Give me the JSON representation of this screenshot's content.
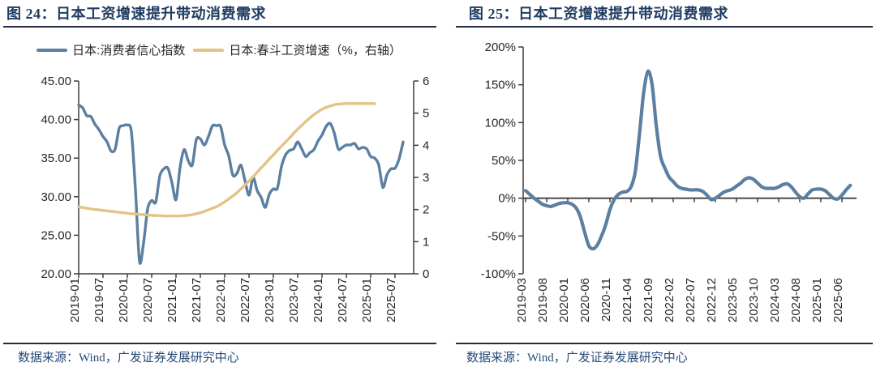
{
  "theme": {
    "title_color": "#1e3c61",
    "rule_color": "#222d42",
    "source_color": "#274b7a",
    "axis_color": "#3f3f3f",
    "tick_label_color": "#262626",
    "blue_line": "#5b7fa1",
    "tan_line": "#e3c386"
  },
  "panels": [
    {
      "title": "图 24：日本工资增速提升带动消费需求",
      "source": "数据来源：Wind，广发证券发展研究中心"
    },
    {
      "title": "图 25：日本工资增速提升带动消费需求",
      "source": "数据来源：Wind，广发证券发展研究中心"
    }
  ],
  "chart_data": [
    {
      "type": "line",
      "title": "图 24：日本工资增速提升带动消费需求",
      "x_start": "2019-01",
      "x_step_months": 1,
      "x_tick_interval_months": 6,
      "x_tick_labels": [
        "2019-01",
        "2019-07",
        "2020-01",
        "2020-07",
        "2021-01",
        "2021-07",
        "2022-01",
        "2022-07",
        "2023-01",
        "2023-07",
        "2024-01",
        "2024-07",
        "2025-01",
        "2025-07"
      ],
      "left_axis": {
        "ticks": [
          "45.00",
          "40.00",
          "35.00",
          "30.00",
          "25.00",
          "20.00"
        ],
        "range": [
          20,
          45
        ]
      },
      "right_axis": {
        "ticks": [
          "6",
          "5",
          "4",
          "3",
          "2",
          "1",
          "0"
        ],
        "range": [
          0,
          6
        ]
      },
      "grid": false,
      "legend_position": "top",
      "series": [
        {
          "name": "日本:消费者信心指数",
          "axis": "left",
          "color": "#5b7fa1",
          "values": [
            41.9,
            41.5,
            40.5,
            40.4,
            39.4,
            38.7,
            37.8,
            37.1,
            35.9,
            36.2,
            38.9,
            39.2,
            39.3,
            38.4,
            30.9,
            21.6,
            24.0,
            28.4,
            29.5,
            29.3,
            32.7,
            33.6,
            33.7,
            31.8,
            29.6,
            33.8,
            36.1,
            34.7,
            34.1,
            37.4,
            37.5,
            36.7,
            37.8,
            39.2,
            39.2,
            39.1,
            36.7,
            35.3,
            32.8,
            33.0,
            34.1,
            32.1,
            30.2,
            32.5,
            30.8,
            29.9,
            28.6,
            30.3,
            31.0,
            31.1,
            33.9,
            35.4,
            36.0,
            36.2,
            37.1,
            36.2,
            35.2,
            35.7,
            36.1,
            37.2,
            38.0,
            39.1,
            39.5,
            38.3,
            36.2,
            36.4,
            36.7,
            36.7,
            36.9,
            36.2,
            36.4,
            36.2,
            35.2,
            35.0,
            34.1,
            31.2,
            32.8,
            33.6,
            33.7,
            34.9,
            37.1
          ]
        },
        {
          "name": "日本:春斗工资增速（%，右轴）",
          "axis": "right",
          "color": "#e3c386",
          "values": [
            2.08,
            2.06,
            2.04,
            2.02,
            2.0,
            1.99,
            1.97,
            1.96,
            1.94,
            1.93,
            1.91,
            1.9,
            1.88,
            1.87,
            1.86,
            1.85,
            1.84,
            1.83,
            1.82,
            1.81,
            1.81,
            1.8,
            1.8,
            1.8,
            1.8,
            1.8,
            1.81,
            1.82,
            1.84,
            1.87,
            1.9,
            1.94,
            1.99,
            2.04,
            2.09,
            2.16,
            2.24,
            2.33,
            2.42,
            2.52,
            2.64,
            2.76,
            2.89,
            3.02,
            3.16,
            3.3,
            3.43,
            3.57,
            3.7,
            3.84,
            3.97,
            4.1,
            4.23,
            4.37,
            4.5,
            4.62,
            4.74,
            4.85,
            4.95,
            5.04,
            5.12,
            5.18,
            5.22,
            5.26,
            5.28,
            5.29,
            5.3,
            5.3,
            5.3,
            5.3,
            5.3,
            5.3,
            5.3,
            5.3
          ]
        }
      ]
    },
    {
      "type": "line",
      "title": "图 25：日本工资增速提升带动消费需求",
      "x_start": "2019-03",
      "x_step_months": 1,
      "x_tick_interval_months": 5,
      "x_tick_labels": [
        "2019-03",
        "2019-08",
        "2020-01",
        "2020-06",
        "2020-11",
        "2021-04",
        "2021-09",
        "2022-02",
        "2022-07",
        "2022-12",
        "2023-05",
        "2023-10",
        "2024-03",
        "2024-08",
        "2025-01",
        "2025-06"
      ],
      "y_axis": {
        "ticks": [
          "200%",
          "150%",
          "100%",
          "50%",
          "0%",
          "-50%",
          "-100%"
        ],
        "range": [
          -100,
          200
        ],
        "unit": "%"
      },
      "grid": false,
      "series": [
        {
          "axis": "left",
          "color": "#5b7fa1",
          "values": [
            10,
            5,
            0,
            -4,
            -8,
            -10,
            -11,
            -9,
            -7,
            -6,
            -6,
            -8,
            -13,
            -25,
            -45,
            -63,
            -67,
            -62,
            -50,
            -35,
            -15,
            -2,
            5,
            8,
            9,
            15,
            35,
            85,
            140,
            168,
            150,
            95,
            55,
            40,
            28,
            22,
            16,
            13,
            12,
            11,
            11,
            11,
            9,
            4,
            -2,
            0,
            4,
            8,
            10,
            12,
            16,
            20,
            25,
            27,
            25,
            20,
            15,
            13,
            13,
            13,
            15,
            18,
            19,
            15,
            8,
            2,
            0,
            6,
            11,
            12,
            12,
            10,
            5,
            0,
            -1,
            4,
            11,
            17
          ]
        }
      ]
    }
  ]
}
